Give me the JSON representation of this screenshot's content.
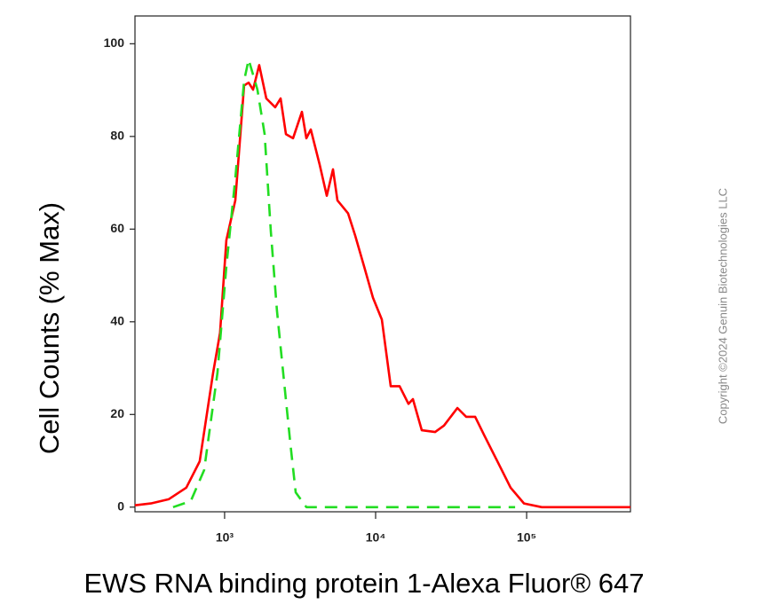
{
  "chart_data": {
    "type": "line",
    "xlabel": "EWS RNA binding protein 1-Alexa Fluor® 647",
    "ylabel": "Cell Counts (% Max)",
    "watermark": "Copyright ©2024 Genuin Biotechnologies LLC",
    "xscale": "log",
    "xlim": [
      255,
      487000
    ],
    "ylim": [
      -1,
      106
    ],
    "xticks": [
      {
        "value": 1000,
        "label": "10³"
      },
      {
        "value": 10000,
        "label": "10⁴"
      },
      {
        "value": 100000,
        "label": "10⁵"
      }
    ],
    "yticks": [
      0,
      20,
      40,
      60,
      80,
      100
    ],
    "series": [
      {
        "color": "#ff0000",
        "linestyle": "solid",
        "x": [
          255,
          325,
          426,
          558,
          684,
          839,
          933,
          1027,
          1177,
          1346,
          1442,
          1543,
          1695,
          1890,
          2163,
          2348,
          2547,
          2838,
          3250,
          3478,
          3723,
          4260,
          4747,
          5221,
          5585,
          6573,
          7328,
          8392,
          9601,
          10990,
          12590,
          14420,
          16500,
          17660,
          20230,
          24780,
          28380,
          34780,
          39810,
          45600,
          52220,
          63960,
          78340,
          96000,
          125900,
          188900,
          487000
        ],
        "values": [
          0.4,
          0.8,
          1.7,
          4.2,
          9.9,
          29.0,
          37.6,
          57.6,
          66.2,
          91.0,
          91.6,
          90.1,
          95.4,
          88.2,
          86.3,
          88.2,
          80.5,
          79.6,
          85.3,
          79.6,
          81.5,
          73.9,
          67.2,
          72.9,
          66.2,
          63.4,
          58.6,
          51.9,
          45.2,
          40.5,
          26.1,
          26.1,
          22.3,
          23.3,
          16.6,
          16.2,
          17.6,
          21.4,
          19.5,
          19.5,
          15.6,
          9.9,
          4.2,
          0.8,
          0,
          0,
          0
        ]
      },
      {
        "color": "#22dd22",
        "linestyle": "dashed",
        "x": [
          456,
          597,
          732,
          897,
          1027,
          1177,
          1346,
          1442,
          1650,
          1840,
          2023,
          2223,
          2477,
          2725,
          2955,
          3478,
          83900
        ],
        "values": [
          0,
          1.3,
          8.0,
          29.0,
          51.9,
          71.0,
          92.0,
          96.6,
          90.1,
          80.5,
          59.5,
          42.4,
          27.1,
          13.7,
          3.2,
          0,
          0
        ]
      }
    ]
  }
}
